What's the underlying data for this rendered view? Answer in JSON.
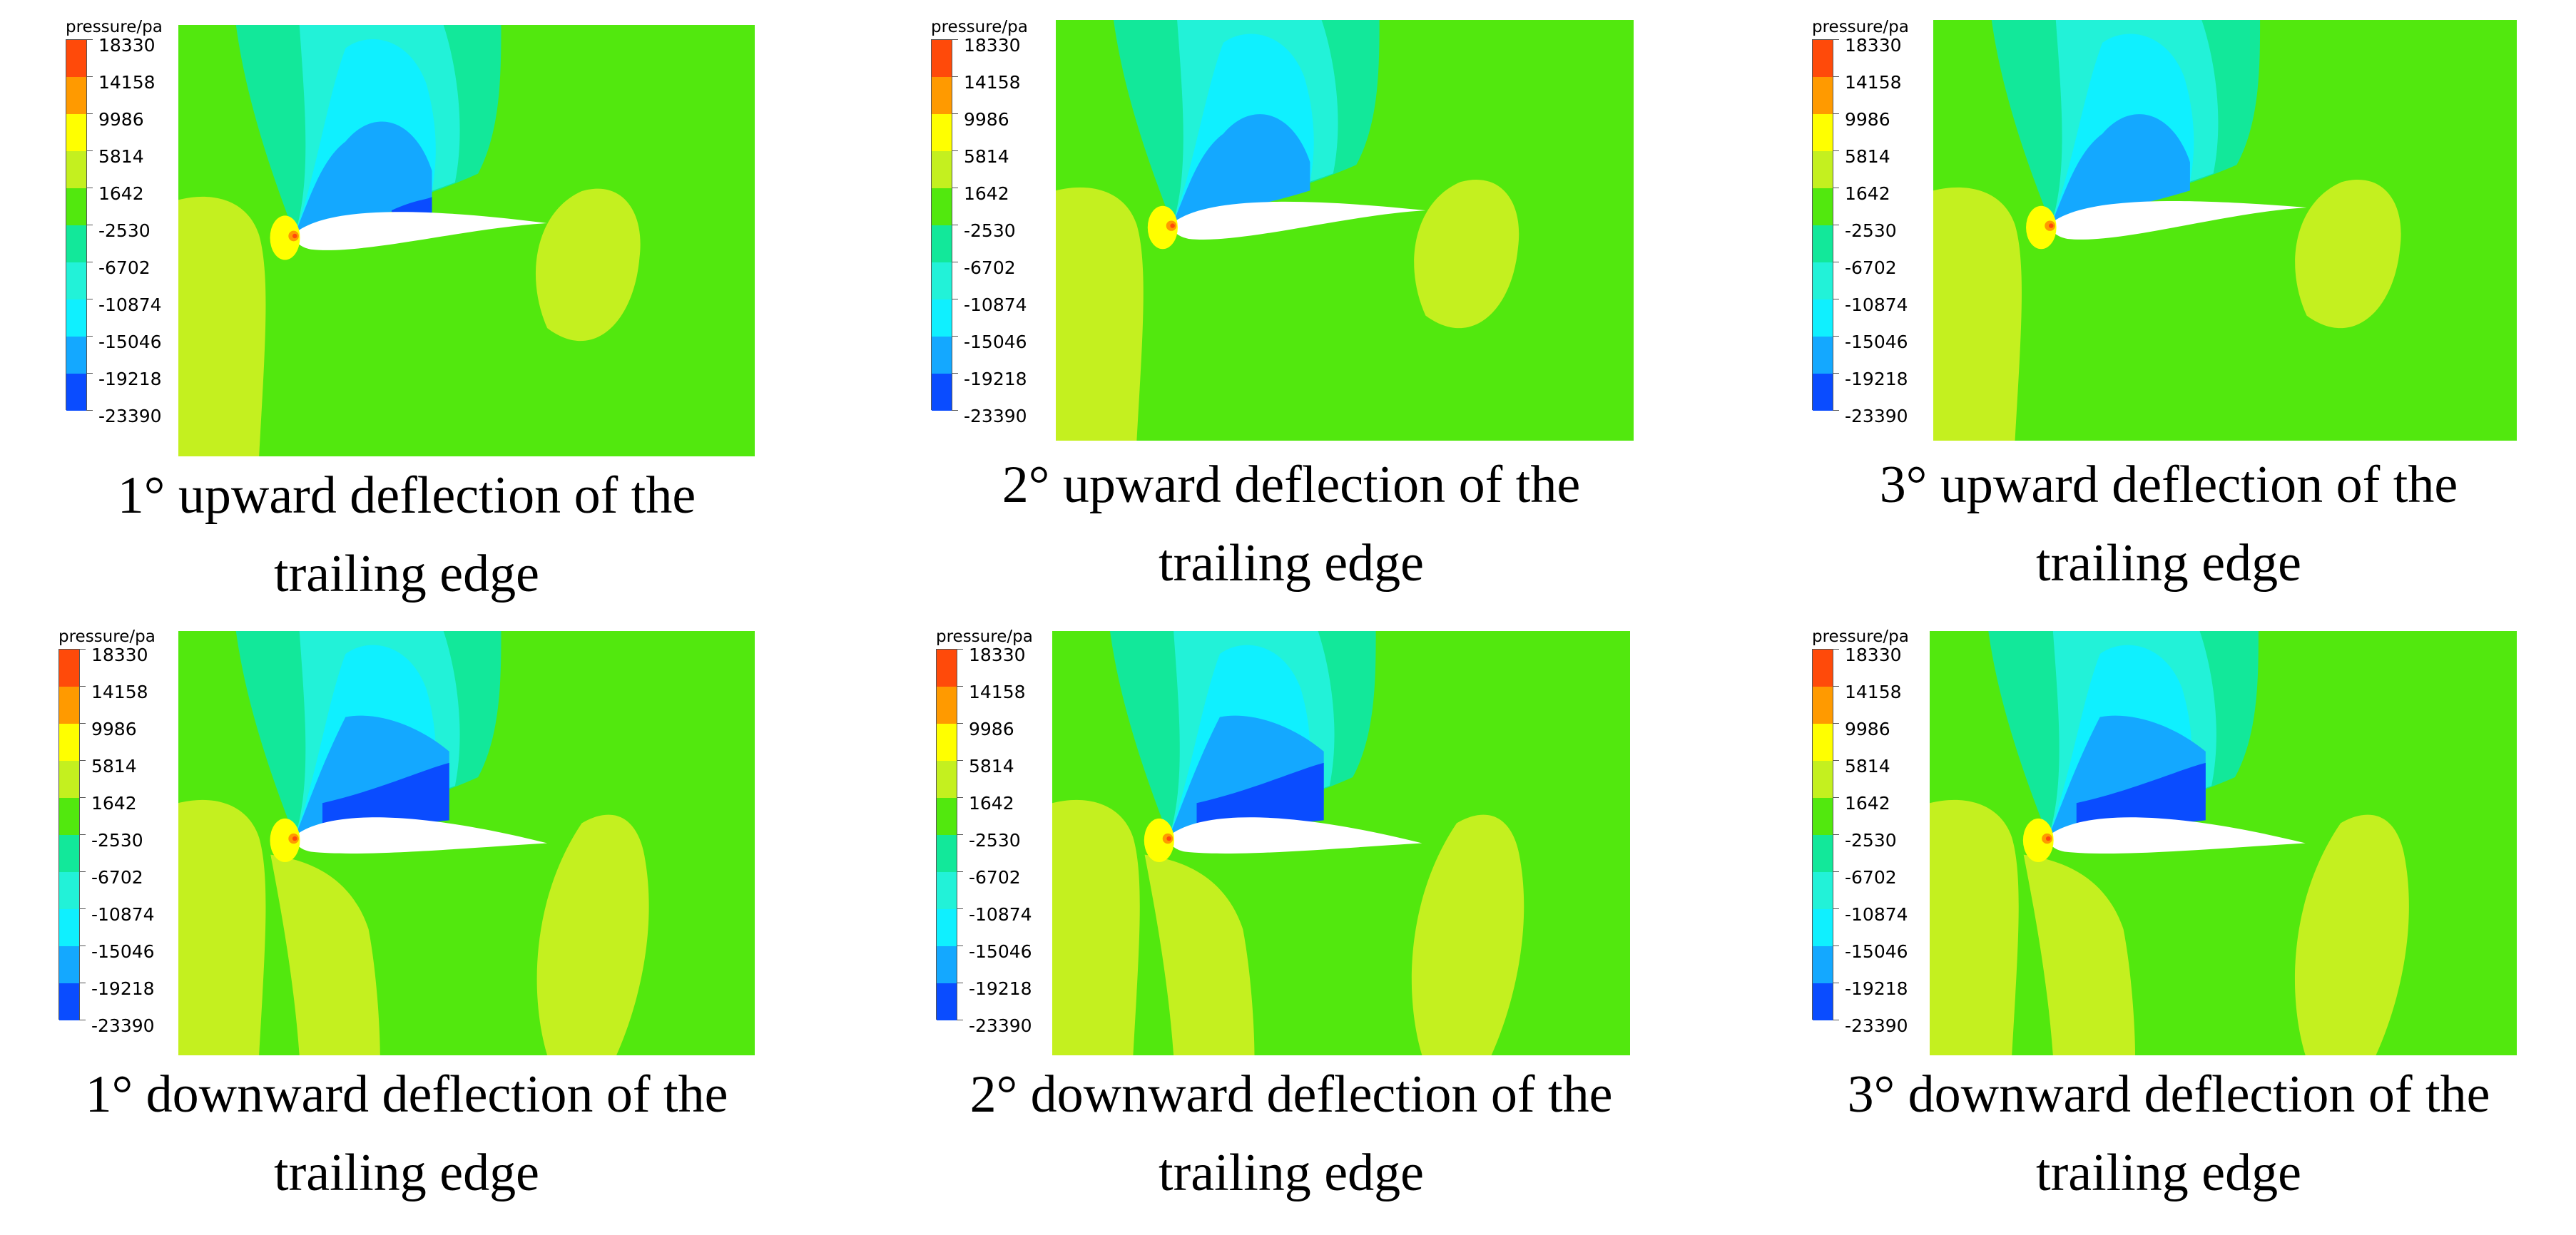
{
  "legend": {
    "title": "pressure/pa",
    "labels": [
      "18330",
      "14158",
      "9986",
      "5814",
      "1642",
      "-2530",
      "-6702",
      "-10874",
      "-15046",
      "-19218",
      "-23390"
    ],
    "colors": [
      "#ff4a0a",
      "#ff9a00",
      "#ffff00",
      "#c4f01f",
      "#52e80e",
      "#12e89a",
      "#22f2d8",
      "#0ff0ff",
      "#14a8ff",
      "#0a4cff",
      "#1020e0"
    ]
  },
  "panels": [
    {
      "caption_line1": "1° upward deflection of the",
      "caption_line2": "trailing edge"
    },
    {
      "caption_line1": "2° upward deflection of the",
      "caption_line2": "trailing edge"
    },
    {
      "caption_line1": "3° upward deflection of the",
      "caption_line2": "trailing edge"
    },
    {
      "caption_line1": "1° downward deflection of the",
      "caption_line2": "trailing edge"
    },
    {
      "caption_line1": "2° downward deflection of the",
      "caption_line2": "trailing edge"
    },
    {
      "caption_line1": "3° downward deflection of the",
      "caption_line2": "trailing edge"
    }
  ]
}
